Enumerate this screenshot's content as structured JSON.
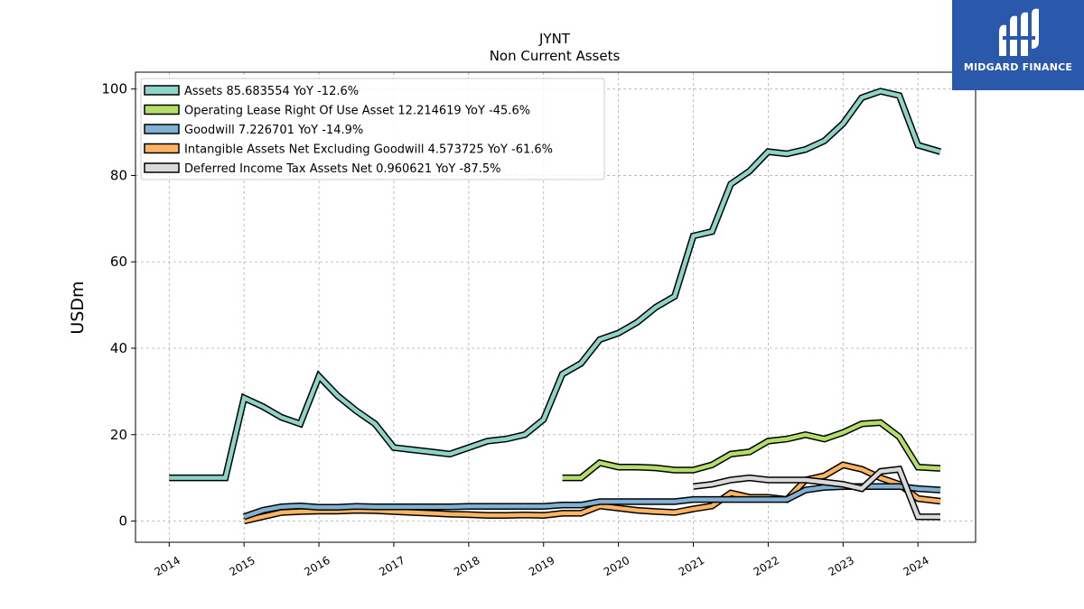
{
  "logo": {
    "text": "MIDGARD FINANCE",
    "background": "#2a58ab"
  },
  "chart_data": {
    "type": "line",
    "title": "JYNT",
    "subtitle": "Non Current  Assets",
    "xlabel": "",
    "ylabel": "USDm",
    "xlim": [
      2013.55,
      2024.77
    ],
    "ylim": [
      -4.9,
      103.9
    ],
    "yticks": [
      0,
      20,
      40,
      60,
      80,
      100
    ],
    "xticks": [
      2014,
      2015,
      2016,
      2017,
      2018,
      2019,
      2020,
      2021,
      2022,
      2023,
      2024
    ],
    "grid": true,
    "legend_position": "top-left",
    "series": [
      {
        "name": "Assets",
        "legend": "Assets  85.683554 YoY -12.6%",
        "color": "#8dd3c7",
        "x": [
          2014.0,
          2014.25,
          2014.5,
          2014.75,
          2015.0,
          2015.25,
          2015.5,
          2015.75,
          2016.0,
          2016.25,
          2016.5,
          2016.75,
          2017.0,
          2017.25,
          2017.5,
          2017.75,
          2018.0,
          2018.25,
          2018.5,
          2018.75,
          2019.0,
          2019.25,
          2019.5,
          2019.75,
          2020.0,
          2020.25,
          2020.5,
          2020.75,
          2021.0,
          2021.25,
          2021.5,
          2021.75,
          2022.0,
          2022.25,
          2022.5,
          2022.75,
          2023.0,
          2023.25,
          2023.5,
          2023.75,
          2024.0,
          2024.3
        ],
        "values": [
          10.0,
          10.0,
          10.0,
          10.0,
          28.5,
          26.5,
          24.0,
          22.5,
          33.5,
          29.0,
          25.5,
          22.5,
          17.0,
          16.5,
          16.0,
          15.5,
          17.0,
          18.5,
          19.0,
          20.0,
          23.5,
          34.0,
          36.5,
          42.0,
          43.5,
          46.0,
          49.5,
          52.0,
          66.0,
          67.0,
          78.0,
          81.0,
          85.5,
          85.0,
          86.0,
          88.0,
          92.0,
          98.0,
          99.5,
          98.5,
          87.0,
          85.5
        ]
      },
      {
        "name": "Operating Lease Right Of Use Asset",
        "legend": "Operating Lease Right Of Use Asset  12.214619 YoY -45.6%",
        "color": "#b3de69",
        "x": [
          2019.25,
          2019.5,
          2019.75,
          2020.0,
          2020.25,
          2020.5,
          2020.75,
          2021.0,
          2021.25,
          2021.5,
          2021.75,
          2022.0,
          2022.25,
          2022.5,
          2022.75,
          2023.0,
          2023.25,
          2023.5,
          2023.75,
          2024.0,
          2024.3
        ],
        "values": [
          10.0,
          10.0,
          13.5,
          12.5,
          12.5,
          12.3,
          11.8,
          11.8,
          13.0,
          15.5,
          16.0,
          18.5,
          19.0,
          20.0,
          19.0,
          20.5,
          22.5,
          22.8,
          19.5,
          12.5,
          12.2
        ]
      },
      {
        "name": "Goodwill",
        "legend": "Goodwill  7.226701 YoY -14.9%",
        "color": "#80b1d3",
        "x": [
          2015.0,
          2015.25,
          2015.5,
          2015.75,
          2016.0,
          2016.25,
          2016.5,
          2016.75,
          2017.0,
          2017.25,
          2017.5,
          2017.75,
          2018.0,
          2018.25,
          2018.5,
          2018.75,
          2019.0,
          2019.25,
          2019.5,
          2019.75,
          2020.0,
          2020.25,
          2020.5,
          2020.75,
          2021.0,
          2021.25,
          2021.5,
          2021.75,
          2022.0,
          2022.25,
          2022.5,
          2022.75,
          2023.0,
          2023.25,
          2023.5,
          2023.75,
          2024.0,
          2024.3
        ],
        "values": [
          1.0,
          2.5,
          3.3,
          3.5,
          3.2,
          3.2,
          3.4,
          3.3,
          3.3,
          3.3,
          3.3,
          3.3,
          3.4,
          3.4,
          3.4,
          3.4,
          3.4,
          3.7,
          3.7,
          4.5,
          4.5,
          4.5,
          4.5,
          4.5,
          5.0,
          5.0,
          5.0,
          5.0,
          5.0,
          5.0,
          7.2,
          7.8,
          8.0,
          8.0,
          8.0,
          8.0,
          7.5,
          7.2
        ]
      },
      {
        "name": "Intangible Assets Net Excluding Goodwill",
        "legend": "Intangible Assets Net Excluding Goodwill  4.573725 YoY -61.6%",
        "color": "#fdb462",
        "x": [
          2015.0,
          2015.25,
          2015.5,
          2015.75,
          2016.0,
          2016.25,
          2016.5,
          2016.75,
          2017.0,
          2017.25,
          2017.5,
          2017.75,
          2018.0,
          2018.25,
          2018.5,
          2018.75,
          2019.0,
          2019.25,
          2019.5,
          2019.75,
          2020.0,
          2020.25,
          2020.5,
          2020.75,
          2021.0,
          2021.25,
          2021.5,
          2021.75,
          2022.0,
          2022.25,
          2022.5,
          2022.75,
          2023.0,
          2023.25,
          2023.5,
          2023.75,
          2024.0,
          2024.3
        ],
        "values": [
          0.0,
          1.0,
          2.0,
          2.2,
          2.3,
          2.3,
          2.5,
          2.4,
          2.2,
          2.0,
          1.8,
          1.6,
          1.5,
          1.3,
          1.3,
          1.4,
          1.3,
          1.8,
          1.8,
          3.5,
          3.0,
          2.5,
          2.2,
          2.0,
          2.8,
          3.5,
          6.5,
          5.5,
          5.5,
          5.0,
          9.5,
          10.5,
          13.0,
          12.0,
          10.0,
          8.5,
          5.2,
          4.6
        ]
      },
      {
        "name": "Deferred Income Tax Assets Net",
        "legend": "Deferred Income Tax Assets Net  0.960621 YoY -87.5%",
        "color": "#d9d9d9",
        "x": [
          2021.0,
          2021.25,
          2021.5,
          2021.75,
          2022.0,
          2022.25,
          2022.5,
          2022.75,
          2023.0,
          2023.25,
          2023.5,
          2023.75,
          2024.0,
          2024.3
        ],
        "values": [
          8.0,
          8.5,
          9.5,
          10.0,
          9.5,
          9.5,
          9.5,
          9.0,
          8.5,
          7.5,
          11.5,
          12.0,
          1.0,
          0.96
        ]
      }
    ]
  }
}
